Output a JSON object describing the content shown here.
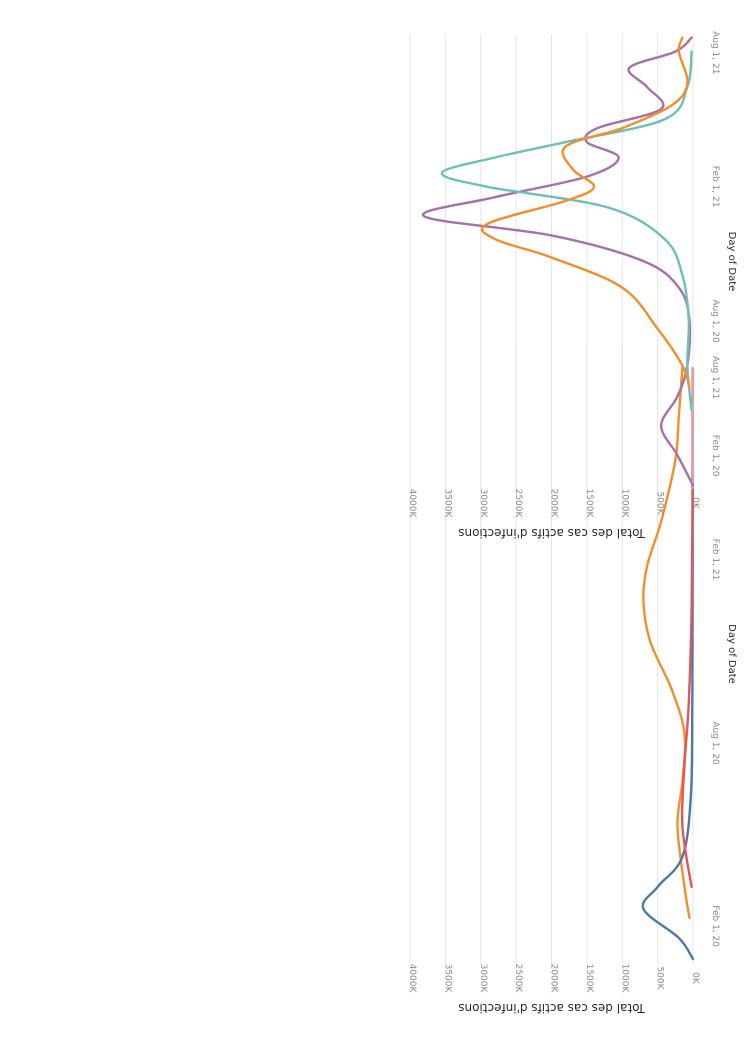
{
  "colors": {
    "orange": "#f28e2b",
    "purple": "#a571a8",
    "teal": "#6cc0b7",
    "blue": "#4e79a7",
    "red": "#e15759",
    "grid": "#e6e6e6",
    "tick_text": "#8a8a8a",
    "axis_title": "#2b2b2b"
  },
  "chart_data": [
    {
      "type": "line",
      "title": "",
      "xlabel": "Day of Date",
      "ylabel": "Total des cas actifs d'infections",
      "x_tick_labels": [
        "Feb 1, 20",
        "Aug 1, 20",
        "Feb 1, 21",
        "Aug 1, 21"
      ],
      "y_tick_labels": [
        "0K",
        "500K",
        "1000K",
        "1500K",
        "2000K",
        "2500K",
        "3000K",
        "3500K",
        "4000K"
      ],
      "ylim": [
        0,
        4000000
      ],
      "xlim": [
        "2020-01-15",
        "2021-09-25"
      ],
      "grid": true,
      "series": [
        {
          "color": "orange",
          "points": [
            [
              "2020-03-01",
              50000
            ],
            [
              "2020-04-01",
              120000
            ],
            [
              "2020-06-01",
              220000
            ],
            [
              "2020-07-15",
              150000
            ],
            [
              "2020-09-01",
              120000
            ],
            [
              "2020-10-15",
              300000
            ],
            [
              "2020-12-01",
              600000
            ],
            [
              "2021-01-10",
              700000
            ],
            [
              "2021-02-15",
              650000
            ],
            [
              "2021-04-01",
              450000
            ],
            [
              "2021-06-01",
              250000
            ],
            [
              "2021-07-15",
              200000
            ],
            [
              "2021-09-01",
              150000
            ]
          ]
        },
        {
          "color": "blue",
          "points": [
            [
              "2020-01-20",
              0
            ],
            [
              "2020-02-10",
              200000
            ],
            [
              "2020-03-10",
              700000
            ],
            [
              "2020-04-01",
              500000
            ],
            [
              "2020-05-01",
              150000
            ],
            [
              "2020-07-01",
              30000
            ],
            [
              "2020-10-01",
              10000
            ],
            [
              "2021-02-01",
              5000
            ],
            [
              "2021-09-01",
              2000
            ]
          ]
        },
        {
          "color": "red",
          "points": [
            [
              "2020-04-01",
              20000
            ],
            [
              "2020-06-01",
              150000
            ],
            [
              "2020-08-01",
              120000
            ],
            [
              "2020-10-01",
              60000
            ],
            [
              "2021-01-01",
              20000
            ],
            [
              "2021-06-01",
              5000
            ],
            [
              "2021-09-01",
              2000
            ]
          ]
        }
      ]
    },
    {
      "type": "line",
      "title": "",
      "xlabel": "Day of Date",
      "ylabel": "Total des cas actifs d'infections",
      "x_tick_labels": [
        "Feb 1, 20",
        "Aug 1, 20",
        "Feb 1, 21",
        "Aug 1, 21"
      ],
      "y_tick_labels": [
        "0K",
        "500K",
        "1000K",
        "1500K",
        "2000K",
        "2500K",
        "3000K",
        "3500K",
        "4000K"
      ],
      "ylim": [
        0,
        4000000
      ],
      "xlim": [
        "2020-01-15",
        "2021-09-25"
      ],
      "grid": true,
      "series": [
        {
          "color": "purple",
          "points": [
            [
              "2020-01-20",
              0
            ],
            [
              "2020-03-01",
              220000
            ],
            [
              "2020-04-10",
              450000
            ],
            [
              "2020-05-20",
              220000
            ],
            [
              "2020-07-01",
              80000
            ],
            [
              "2020-09-01",
              50000
            ],
            [
              "2020-10-15",
              200000
            ],
            [
              "2020-11-20",
              700000
            ],
            [
              "2020-12-25",
              2000000
            ],
            [
              "2021-01-20",
              3800000
            ],
            [
              "2021-02-15",
              2800000
            ],
            [
              "2021-03-15",
              1500000
            ],
            [
              "2021-04-10",
              1050000
            ],
            [
              "2021-05-01",
              1500000
            ],
            [
              "2021-05-20",
              1350000
            ],
            [
              "2021-06-15",
              450000
            ],
            [
              "2021-07-15",
              650000
            ],
            [
              "2021-08-10",
              900000
            ],
            [
              "2021-09-01",
              250000
            ],
            [
              "2021-09-20",
              20000
            ]
          ]
        },
        {
          "color": "teal",
          "points": [
            [
              "2020-05-01",
              20000
            ],
            [
              "2020-07-01",
              80000
            ],
            [
              "2020-09-01",
              60000
            ],
            [
              "2020-11-01",
              150000
            ],
            [
              "2020-12-20",
              400000
            ],
            [
              "2021-02-01",
              1200000
            ],
            [
              "2021-03-01",
              2900000
            ],
            [
              "2021-03-20",
              3550000
            ],
            [
              "2021-04-10",
              2800000
            ],
            [
              "2021-05-01",
              1800000
            ],
            [
              "2021-06-01",
              400000
            ],
            [
              "2021-07-15",
              80000
            ],
            [
              "2021-09-01",
              20000
            ]
          ]
        },
        {
          "color": "orange",
          "points": [
            [
              "2020-06-01",
              50000
            ],
            [
              "2020-07-01",
              150000
            ],
            [
              "2020-08-20",
              500000
            ],
            [
              "2020-10-15",
              1000000
            ],
            [
              "2020-11-25",
              2000000
            ],
            [
              "2020-12-20",
              2800000
            ],
            [
              "2021-01-10",
              2900000
            ],
            [
              "2021-02-10",
              1800000
            ],
            [
              "2021-03-01",
              1400000
            ],
            [
              "2021-03-25",
              1700000
            ],
            [
              "2021-04-25",
              1800000
            ],
            [
              "2021-05-20",
              1000000
            ],
            [
              "2021-06-20",
              300000
            ],
            [
              "2021-07-20",
              80000
            ],
            [
              "2021-09-01",
              200000
            ],
            [
              "2021-09-20",
              150000
            ]
          ]
        }
      ]
    }
  ]
}
